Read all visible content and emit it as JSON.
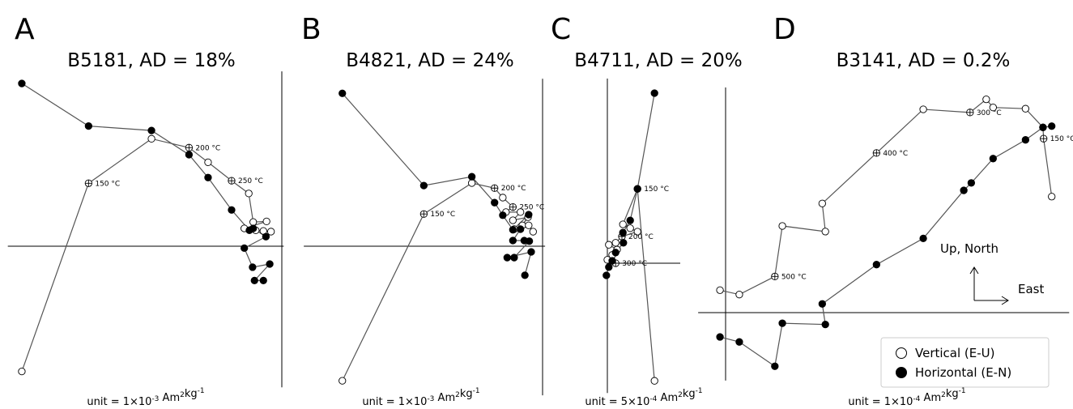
{
  "chart_data": [
    {
      "type": "line",
      "label": "A",
      "title": "B5181, AD = 18%",
      "unit": {
        "text": [
          "unit = 1×10",
          " Am",
          "kg"
        ],
        "sup": [
          "-3",
          "2",
          "-1"
        ]
      },
      "xlim": [
        -4.31,
        0.03
      ],
      "ylim": [
        -2.22,
        2.75
      ],
      "series": [
        {
          "color": "#ffffff",
          "x": [
            -4.09,
            -3.04,
            -2.05,
            -1.46,
            -1.16,
            -0.79,
            -0.52,
            -0.45,
            -0.24,
            -0.59,
            -0.41,
            -0.29,
            -0.17
          ],
          "values": [
            -1.97,
            0.99,
            1.69,
            1.55,
            1.32,
            1.03,
            0.83,
            0.38,
            0.39,
            0.28,
            0.25,
            0.24,
            0.23
          ],
          "point_labels": [
            null,
            "150 °C",
            null,
            "200 °C",
            null,
            "250 °C",
            null,
            null,
            null,
            null,
            null,
            null,
            null
          ]
        },
        {
          "color": "#000000",
          "x": [
            -4.09,
            -3.04,
            -2.05,
            -1.46,
            -1.16,
            -0.79,
            -0.51,
            -0.45,
            -0.25,
            -0.59,
            -0.46,
            -0.19,
            -0.43,
            -0.29
          ],
          "values": [
            2.56,
            1.89,
            1.82,
            1.44,
            1.08,
            0.57,
            0.25,
            0.28,
            0.15,
            -0.03,
            -0.33,
            -0.28,
            -0.54,
            -0.54
          ]
        }
      ]
    },
    {
      "type": "line",
      "label": "B",
      "title": "B4821, AD = 24%",
      "unit": {
        "text": [
          "unit = 1×10",
          " Am",
          "kg"
        ],
        "sup": [
          "-3",
          "2",
          "-1"
        ]
      },
      "xlim": [
        -3.78,
        0.04
      ],
      "ylim": [
        -2.36,
        2.65
      ],
      "series": [
        {
          "color": "#ffffff",
          "x": [
            -3.17,
            -1.88,
            -1.12,
            -0.76,
            -0.63,
            -0.47,
            -0.58,
            -0.35,
            -0.47,
            -0.23,
            -0.32,
            -0.45,
            -0.22,
            -0.15
          ],
          "values": [
            -2.13,
            0.51,
            1.0,
            0.92,
            0.77,
            0.62,
            0.54,
            0.54,
            0.41,
            0.46,
            0.33,
            0.27,
            0.33,
            0.23
          ],
          "point_labels": [
            null,
            "150 °C",
            null,
            "200 °C",
            null,
            "250 °C",
            null,
            null,
            null,
            null,
            null,
            null,
            null,
            null
          ]
        },
        {
          "color": "#000000",
          "x": [
            -3.17,
            -1.88,
            -1.12,
            -0.76,
            -0.63,
            -0.47,
            -0.22,
            -0.35,
            -0.47,
            -0.29,
            -0.21,
            -0.45,
            -0.56,
            -0.18,
            -0.28
          ],
          "values": [
            2.42,
            0.96,
            1.1,
            0.69,
            0.49,
            0.26,
            0.5,
            0.27,
            0.09,
            0.09,
            0.08,
            -0.18,
            -0.18,
            -0.09,
            -0.46
          ]
        }
      ]
    },
    {
      "type": "line",
      "label": "C",
      "title": "B4711, AD = 20%",
      "unit": {
        "text": [
          "unit = 5×10",
          " Am",
          "kg"
        ],
        "sup": [
          "-4",
          "2",
          "-1"
        ]
      },
      "xlim": [
        0,
        1.5
      ],
      "ylim": [
        -2.67,
        3.8
      ],
      "series": [
        {
          "color": "#ffffff",
          "x": [
            0.97,
            0.62,
            0.32,
            0.47,
            0.62,
            0.3,
            0.17,
            0.03,
            0.2,
            0.1,
            0.0,
            0.17
          ],
          "values": [
            -2.42,
            1.53,
            0.8,
            0.72,
            0.65,
            0.55,
            0.42,
            0.38,
            0.28,
            0.17,
            0.07,
            0.0
          ],
          "point_labels": [
            null,
            "150 °C",
            null,
            null,
            null,
            "200 °C",
            null,
            null,
            null,
            null,
            null,
            "300 °C"
          ]
        },
        {
          "color": "#000000",
          "x": [
            0.97,
            0.62,
            0.47,
            0.32,
            0.33,
            0.17,
            0.1,
            0.03,
            -0.02
          ],
          "values": [
            3.5,
            1.53,
            0.88,
            0.63,
            0.42,
            0.22,
            0.05,
            -0.08,
            -0.25
          ]
        }
      ]
    },
    {
      "type": "line",
      "label": "D",
      "title": "B3141, AD = 0.2%",
      "unit": {
        "text": [
          "unit = 1×10",
          " Am",
          "kg"
        ],
        "sup": [
          "-4",
          "2",
          "-1"
        ]
      },
      "xlim": [
        -0.44,
        5.51
      ],
      "ylim": [
        -1.09,
        3.61
      ],
      "annotations": [
        "Up, North",
        "East"
      ],
      "series": [
        {
          "name": "Vertical (E-U)",
          "color": "#ffffff",
          "x": [
            -0.09,
            0.22,
            0.79,
            0.91,
            1.6,
            1.55,
            2.42,
            3.17,
            3.92,
            4.18,
            4.29,
            4.81,
            5.09,
            5.1,
            5.23
          ],
          "values": [
            0.36,
            0.29,
            0.58,
            1.39,
            1.3,
            1.75,
            2.56,
            3.26,
            3.21,
            3.42,
            3.29,
            3.27,
            2.97,
            2.79,
            1.86
          ],
          "point_labels": [
            null,
            null,
            "500 °C",
            null,
            null,
            null,
            "400 °C",
            null,
            "300 °C",
            null,
            null,
            null,
            null,
            "150 °C",
            null
          ]
        },
        {
          "name": "Horizontal (E-N)",
          "color": "#000000",
          "x": [
            -0.09,
            0.22,
            0.79,
            0.91,
            1.6,
            1.55,
            2.42,
            3.17,
            3.82,
            3.94,
            4.29,
            4.81,
            5.09,
            5.23
          ],
          "values": [
            -0.39,
            -0.47,
            -0.86,
            -0.17,
            -0.19,
            0.14,
            0.77,
            1.19,
            1.96,
            2.08,
            2.47,
            2.77,
            2.97,
            2.99
          ]
        }
      ]
    }
  ]
}
